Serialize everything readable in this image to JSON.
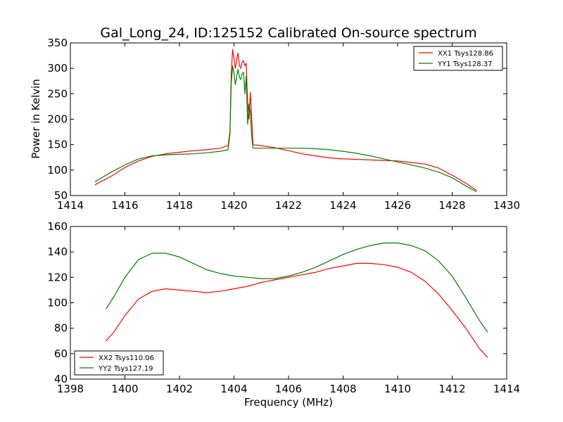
{
  "figure": {
    "title": "Gal_Long_24, ID:125152 Calibrated On-source spectrum"
  },
  "chart_data": [
    {
      "type": "line",
      "title": "Gal_Long_24, ID:125152 Calibrated On-source spectrum",
      "xlabel": "",
      "ylabel": "Power in Kelvin",
      "xlim": [
        1414,
        1430
      ],
      "ylim": [
        50,
        350
      ],
      "xticks": [
        1414,
        1416,
        1418,
        1420,
        1422,
        1424,
        1426,
        1428,
        1430
      ],
      "yticks": [
        50,
        100,
        150,
        200,
        250,
        300,
        350
      ],
      "grid": false,
      "legend": "top-right",
      "series": [
        {
          "name": "XX1 Tsys128.86",
          "color": "#ff0000",
          "points": [
            [
              1414.9,
              71
            ],
            [
              1415.5,
              88
            ],
            [
              1416.0,
              105
            ],
            [
              1416.5,
              118
            ],
            [
              1417.0,
              127
            ],
            [
              1417.5,
              132
            ],
            [
              1418.0,
              135
            ],
            [
              1418.5,
              138
            ],
            [
              1419.0,
              140
            ],
            [
              1419.5,
              143
            ],
            [
              1419.78,
              148
            ],
            [
              1419.85,
              175
            ],
            [
              1419.9,
              290
            ],
            [
              1419.95,
              337
            ],
            [
              1420.0,
              320
            ],
            [
              1420.05,
              300
            ],
            [
              1420.1,
              318
            ],
            [
              1420.15,
              330
            ],
            [
              1420.2,
              305
            ],
            [
              1420.25,
              300
            ],
            [
              1420.3,
              312
            ],
            [
              1420.35,
              315
            ],
            [
              1420.4,
              305
            ],
            [
              1420.45,
              310
            ],
            [
              1420.5,
              230
            ],
            [
              1420.55,
              200
            ],
            [
              1420.6,
              253
            ],
            [
              1420.65,
              200
            ],
            [
              1420.7,
              150
            ],
            [
              1421.0,
              148
            ],
            [
              1421.5,
              144
            ],
            [
              1422.0,
              138
            ],
            [
              1422.5,
              132
            ],
            [
              1423.0,
              128
            ],
            [
              1423.5,
              124
            ],
            [
              1424.0,
              122
            ],
            [
              1424.5,
              121
            ],
            [
              1425.0,
              120
            ],
            [
              1425.5,
              119
            ],
            [
              1426.0,
              118
            ],
            [
              1426.5,
              115
            ],
            [
              1427.0,
              112
            ],
            [
              1427.5,
              104
            ],
            [
              1428.0,
              90
            ],
            [
              1428.5,
              74
            ],
            [
              1428.9,
              60
            ]
          ]
        },
        {
          "name": "YY1 Tsys128.37",
          "color": "#008000",
          "points": [
            [
              1414.9,
              77
            ],
            [
              1415.5,
              96
            ],
            [
              1416.0,
              110
            ],
            [
              1416.5,
              122
            ],
            [
              1417.0,
              128
            ],
            [
              1417.5,
              130
            ],
            [
              1418.0,
              131
            ],
            [
              1418.5,
              132
            ],
            [
              1419.0,
              134
            ],
            [
              1419.5,
              137
            ],
            [
              1419.78,
              140
            ],
            [
              1419.85,
              170
            ],
            [
              1419.9,
              270
            ],
            [
              1419.95,
              305
            ],
            [
              1420.0,
              290
            ],
            [
              1420.05,
              268
            ],
            [
              1420.1,
              285
            ],
            [
              1420.15,
              298
            ],
            [
              1420.2,
              282
            ],
            [
              1420.25,
              278
            ],
            [
              1420.3,
              290
            ],
            [
              1420.35,
              292
            ],
            [
              1420.4,
              250
            ],
            [
              1420.45,
              285
            ],
            [
              1420.5,
              190
            ],
            [
              1420.55,
              230
            ],
            [
              1420.6,
              215
            ],
            [
              1420.65,
              165
            ],
            [
              1420.7,
              143
            ],
            [
              1421.0,
              143
            ],
            [
              1421.5,
              143
            ],
            [
              1422.0,
              143
            ],
            [
              1422.5,
              143
            ],
            [
              1423.0,
              142
            ],
            [
              1423.5,
              140
            ],
            [
              1424.0,
              137
            ],
            [
              1424.5,
              133
            ],
            [
              1425.0,
              128
            ],
            [
              1425.5,
              122
            ],
            [
              1426.0,
              116
            ],
            [
              1426.5,
              110
            ],
            [
              1427.0,
              104
            ],
            [
              1427.5,
              96
            ],
            [
              1428.0,
              85
            ],
            [
              1428.5,
              69
            ],
            [
              1428.9,
              57
            ]
          ]
        }
      ]
    },
    {
      "type": "line",
      "title": "",
      "xlabel": "Frequency (MHz)",
      "ylabel": "",
      "xlim": [
        1398,
        1414
      ],
      "ylim": [
        40,
        160
      ],
      "xticks": [
        1398,
        1400,
        1402,
        1404,
        1406,
        1408,
        1410,
        1412,
        1414
      ],
      "yticks": [
        40,
        60,
        80,
        100,
        120,
        140,
        160
      ],
      "grid": false,
      "legend": "bottom-left",
      "series": [
        {
          "name": "XX2 Tsys110.06",
          "color": "#ff0000",
          "points": [
            [
              1399.3,
              70
            ],
            [
              1399.6,
              77
            ],
            [
              1400.0,
              90
            ],
            [
              1400.5,
              103
            ],
            [
              1401.0,
              109
            ],
            [
              1401.5,
              111
            ],
            [
              1402.0,
              110
            ],
            [
              1402.5,
              109
            ],
            [
              1403.0,
              108
            ],
            [
              1403.5,
              109
            ],
            [
              1404.0,
              111
            ],
            [
              1404.5,
              113
            ],
            [
              1405.0,
              116
            ],
            [
              1405.5,
              118
            ],
            [
              1406.0,
              120
            ],
            [
              1406.5,
              122
            ],
            [
              1407.0,
              124
            ],
            [
              1407.5,
              127
            ],
            [
              1408.0,
              129
            ],
            [
              1408.5,
              131
            ],
            [
              1409.0,
              131
            ],
            [
              1409.5,
              130
            ],
            [
              1410.0,
              128
            ],
            [
              1410.5,
              124
            ],
            [
              1411.0,
              117
            ],
            [
              1411.5,
              107
            ],
            [
              1412.0,
              94
            ],
            [
              1412.5,
              80
            ],
            [
              1413.0,
              64
            ],
            [
              1413.3,
              57
            ]
          ]
        },
        {
          "name": "YY2 Tsys127.19",
          "color": "#008000",
          "points": [
            [
              1399.3,
              95
            ],
            [
              1399.6,
              105
            ],
            [
              1400.0,
              120
            ],
            [
              1400.5,
              134
            ],
            [
              1401.0,
              139
            ],
            [
              1401.5,
              139
            ],
            [
              1402.0,
              136
            ],
            [
              1402.5,
              131
            ],
            [
              1403.0,
              126
            ],
            [
              1403.5,
              123
            ],
            [
              1404.0,
              121
            ],
            [
              1404.5,
              120
            ],
            [
              1405.0,
              119
            ],
            [
              1405.5,
              119
            ],
            [
              1406.0,
              121
            ],
            [
              1406.5,
              124
            ],
            [
              1407.0,
              128
            ],
            [
              1407.5,
              133
            ],
            [
              1408.0,
              138
            ],
            [
              1408.5,
              142
            ],
            [
              1409.0,
              145
            ],
            [
              1409.5,
              147
            ],
            [
              1410.0,
              147
            ],
            [
              1410.5,
              145
            ],
            [
              1411.0,
              141
            ],
            [
              1411.5,
              133
            ],
            [
              1412.0,
              121
            ],
            [
              1412.5,
              104
            ],
            [
              1413.0,
              86
            ],
            [
              1413.3,
              77
            ]
          ]
        }
      ]
    }
  ]
}
